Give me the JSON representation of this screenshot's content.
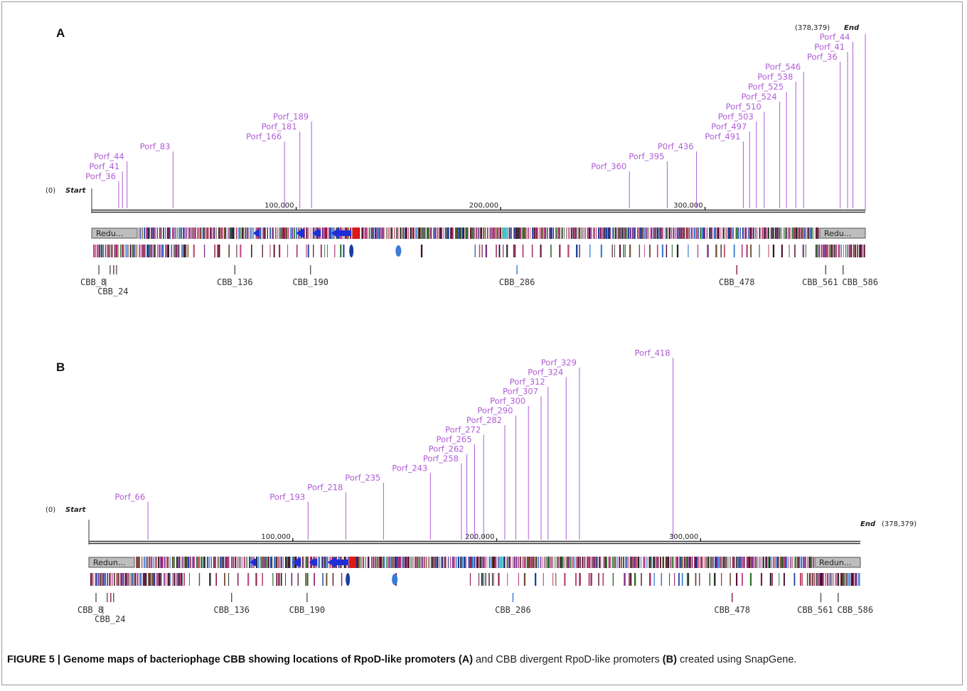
{
  "colors": {
    "promoter": "#b05cd6",
    "axis": "#333333",
    "caption_text": "#222222"
  },
  "panels": [
    {
      "label": "A",
      "start_label": "Start",
      "start_coord": "(0)",
      "end_label": "End",
      "end_coord": "(378,379)",
      "genome_length": 378379,
      "ticks": [
        {
          "pos": 100000,
          "label": "100,000"
        },
        {
          "pos": 200000,
          "label": "200,000"
        },
        {
          "pos": 300000,
          "label": "300,000"
        }
      ],
      "redundant_labels": [
        "Redu...",
        "Redu..."
      ],
      "promoters": [
        {
          "label": "Porf_36",
          "pos": 13200,
          "level": 0
        },
        {
          "label": "Porf_41",
          "pos": 15000,
          "level": 1
        },
        {
          "label": "Porf_44",
          "pos": 17300,
          "level": 2
        },
        {
          "label": "Porf_83",
          "pos": 39800,
          "level": 3
        },
        {
          "label": "Porf_166",
          "pos": 94300,
          "level": 4
        },
        {
          "label": "Porf_181",
          "pos": 101800,
          "level": 5
        },
        {
          "label": "Porf_189",
          "pos": 107500,
          "level": 6
        },
        {
          "label": "Porf_360",
          "pos": 263000,
          "level": 1
        },
        {
          "label": "Porf_395",
          "pos": 281500,
          "level": 2
        },
        {
          "label": "P0rf_436",
          "pos": 295800,
          "level": 3
        },
        {
          "label": "Porf_491",
          "pos": 318700,
          "level": 4
        },
        {
          "label": "Porf_497",
          "pos": 321800,
          "level": 5
        },
        {
          "label": "Porf_503",
          "pos": 325100,
          "level": 6
        },
        {
          "label": "Porf_510",
          "pos": 328900,
          "level": 7
        },
        {
          "label": "Porf_524",
          "pos": 336500,
          "level": 8
        },
        {
          "label": "Porf_525",
          "pos": 339800,
          "level": 9
        },
        {
          "label": "Porf_538",
          "pos": 344400,
          "level": 10
        },
        {
          "label": "Porf_546",
          "pos": 348200,
          "level": 11
        },
        {
          "label": "Porf_36",
          "pos": 366100,
          "level": 12
        },
        {
          "label": "Porf_41",
          "pos": 369700,
          "level": 13
        },
        {
          "label": "Porf_44",
          "pos": 372300,
          "level": 14
        }
      ],
      "cbb_markers": [
        {
          "label": "CBB_8",
          "pos": 3500
        },
        {
          "label": "CBB_24",
          "pos": 9000
        },
        {
          "label": "CBB_136",
          "pos": 70000
        },
        {
          "label": "CBB_190",
          "pos": 107000
        },
        {
          "label": "CBB_286",
          "pos": 208000
        },
        {
          "label": "CBB_478",
          "pos": 315500
        },
        {
          "label": "CBB_561",
          "pos": 359000
        },
        {
          "label": "CBB_586",
          "pos": 367500
        }
      ]
    },
    {
      "label": "B",
      "start_label": "Start",
      "start_coord": "(0)",
      "end_label": "End",
      "end_coord": "(378,379)",
      "genome_length": 378379,
      "ticks": [
        {
          "pos": 100000,
          "label": "100,000"
        },
        {
          "pos": 200000,
          "label": "200,000"
        },
        {
          "pos": 300000,
          "label": "300,000"
        }
      ],
      "redundant_labels": [
        "Redun...",
        "Redun..."
      ],
      "promoters": [
        {
          "label": "Porf_66",
          "pos": 29000,
          "level": 0
        },
        {
          "label": "Porf_193",
          "pos": 107500,
          "level": 0
        },
        {
          "label": "Porf_218",
          "pos": 126000,
          "level": 1
        },
        {
          "label": "Porf_235",
          "pos": 144500,
          "level": 2
        },
        {
          "label": "Porf_243",
          "pos": 167500,
          "level": 3
        },
        {
          "label": "Porf_258",
          "pos": 182700,
          "level": 4
        },
        {
          "label": "Porf_262",
          "pos": 185400,
          "level": 5
        },
        {
          "label": "Porf_265",
          "pos": 189200,
          "level": 6
        },
        {
          "label": "Porf_272",
          "pos": 193600,
          "level": 7
        },
        {
          "label": "Porf_282",
          "pos": 204000,
          "level": 8
        },
        {
          "label": "Porf_290",
          "pos": 209400,
          "level": 9
        },
        {
          "label": "Porf_300",
          "pos": 215600,
          "level": 10
        },
        {
          "label": "Porf_307",
          "pos": 221800,
          "level": 11
        },
        {
          "label": "Porf_312",
          "pos": 225200,
          "level": 12
        },
        {
          "label": "Porf_324",
          "pos": 234100,
          "level": 13
        },
        {
          "label": "Porf_329",
          "pos": 240600,
          "level": 14
        },
        {
          "label": "Porf_418",
          "pos": 286500,
          "level": 15
        }
      ],
      "cbb_markers": [
        {
          "label": "CBB_8",
          "pos": 3500
        },
        {
          "label": "CBB_24",
          "pos": 9000
        },
        {
          "label": "CBB_136",
          "pos": 70000
        },
        {
          "label": "CBB_190",
          "pos": 107000
        },
        {
          "label": "CBB_286",
          "pos": 208000
        },
        {
          "label": "CBB_478",
          "pos": 315500
        },
        {
          "label": "CBB_561",
          "pos": 359000
        },
        {
          "label": "CBB_586",
          "pos": 367500
        }
      ]
    }
  ],
  "caption": {
    "fig": "FIGURE 5 | Genome maps of bacteriophage CBB showing locations of RpoD-like promoters ",
    "a": "(A)",
    "mid": " and CBB divergent RpoD-like promoters ",
    "b": "(B)",
    "end": " created using SnapGene."
  }
}
